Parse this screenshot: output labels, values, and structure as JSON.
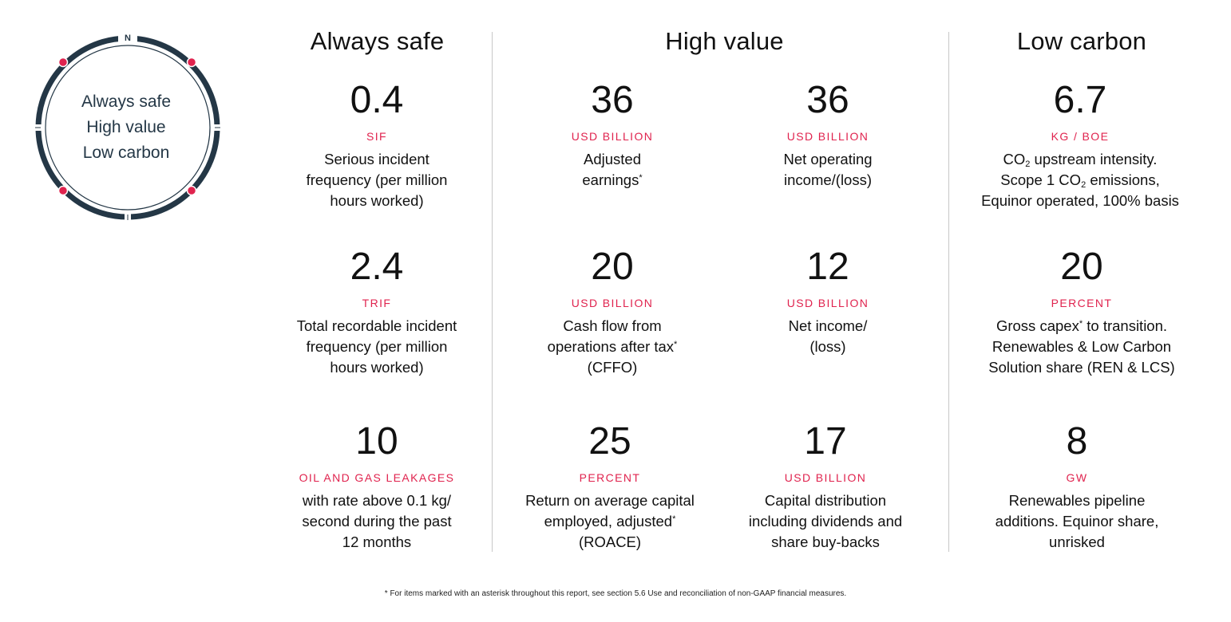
{
  "compass": {
    "north_letter": "N",
    "lines": [
      "Always safe",
      "High value",
      "Low carbon"
    ],
    "ring_color": "#243746",
    "dot_color": "#e0234e"
  },
  "sections": {
    "safe": {
      "title": "Always safe"
    },
    "value": {
      "title": "High value"
    },
    "carbon": {
      "title": "Low carbon"
    }
  },
  "kpis": {
    "sif": {
      "value": "0.4",
      "unit": "SIF",
      "desc": [
        "Serious incident",
        "frequency (per million",
        "hours worked)"
      ]
    },
    "trif": {
      "value": "2.4",
      "unit": "TRIF",
      "desc": [
        "Total recordable incident",
        "frequency (per million",
        "hours worked)"
      ]
    },
    "leaks": {
      "value": "10",
      "unit": "OIL AND GAS LEAKAGES",
      "desc": [
        "with rate above 0.1 kg/",
        "second during the past",
        "12 months"
      ]
    },
    "adj_earnings": {
      "value": "36",
      "unit": "USD BILLION",
      "desc_line1": "Adjusted",
      "desc_line2": "earnings",
      "asterisk": "*"
    },
    "net_operating": {
      "value": "36",
      "unit": "USD BILLION",
      "desc": [
        "Net operating",
        "income/(loss)"
      ]
    },
    "cffo": {
      "value": "20",
      "unit": "USD BILLION",
      "desc_line1": "Cash flow from",
      "desc_line2": "operations after tax",
      "asterisk": "*",
      "desc_line3": "(CFFO)"
    },
    "net_income": {
      "value": "12",
      "unit": "USD BILLION",
      "desc": [
        "Net income/",
        "(loss)"
      ]
    },
    "roace": {
      "value": "25",
      "unit": "PERCENT",
      "desc_line1": "Return on average capital",
      "desc_line2": "employed, adjusted",
      "asterisk": "*",
      "desc_line3": "(ROACE)"
    },
    "capital_distribution": {
      "value": "17",
      "unit": "USD BILLION",
      "desc": [
        "Capital distribution",
        "including dividends and",
        "share buy-backs"
      ]
    },
    "co2_intensity": {
      "value": "6.7",
      "unit": "KG / BOE",
      "line1_pre": "CO",
      "line1_sub": "2",
      "line1_post": " upstream intensity.",
      "line2_pre": "Scope 1 CO",
      "line2_sub": "2",
      "line2_post": " emissions,",
      "line3": "Equinor operated, 100% basis"
    },
    "transition_capex": {
      "value": "20",
      "unit": "PERCENT",
      "desc_line1_pre": "Gross capex",
      "asterisk": "*",
      "desc_line1_post": " to transition.",
      "desc_line2": "Renewables & Low Carbon",
      "desc_line3": "Solution share (REN & LCS)"
    },
    "renewables_pipeline": {
      "value": "8",
      "unit": "GW",
      "desc": [
        "Renewables pipeline",
        "additions. Equinor share,",
        "unrisked"
      ]
    }
  },
  "footnote": "* For items marked with an asterisk throughout this report, see section 5.6 Use and reconciliation of non-GAAP financial measures."
}
